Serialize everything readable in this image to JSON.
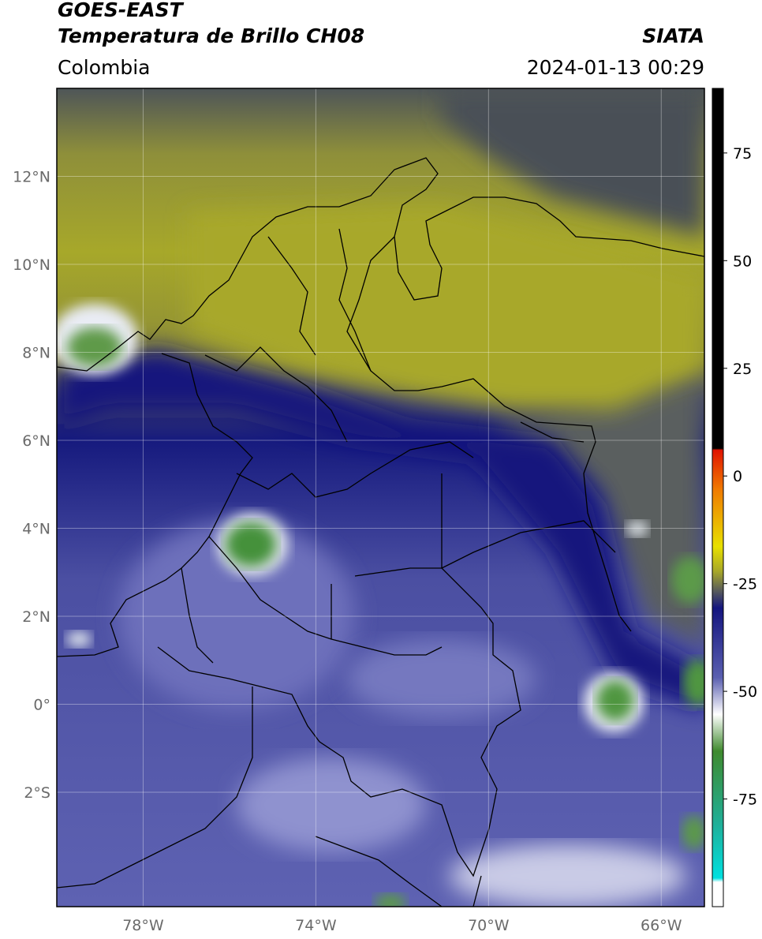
{
  "header": {
    "satellite": "GOES-EAST",
    "product": "Temperatura de Brillo CH08",
    "source": "SIATA",
    "region": "Colombia",
    "datetime": "2024-01-13 00:29"
  },
  "map": {
    "lat_labels": [
      "12°N",
      "10°N",
      "8°N",
      "6°N",
      "4°N",
      "2°N",
      "0°",
      "2°S"
    ],
    "lon_labels": [
      "78°W",
      "74°W",
      "70°W",
      "66°W"
    ],
    "lat_values": [
      12,
      10,
      8,
      6,
      4,
      2,
      0,
      -2
    ],
    "lon_values": [
      -78,
      -74,
      -70,
      -66
    ],
    "lat_range": [
      -4.6,
      14.0
    ],
    "lon_range": [
      -80.0,
      -65.0
    ],
    "grid": true
  },
  "colorbar": {
    "tick_labels": [
      "75",
      "50",
      "25",
      "0",
      "-25",
      "-50",
      "-75"
    ],
    "tick_values": [
      75,
      50,
      25,
      0,
      -25,
      -50,
      -75
    ],
    "range": [
      -100,
      90
    ],
    "colors": {
      "warm": "#000000",
      "red": "#e01400",
      "orange": "#f07a00",
      "yellow": "#e8e000",
      "olive": "#a8a828",
      "gray": "#55585c",
      "navy": "#14157f",
      "blue": "#5a5fb0",
      "white": "#ffffff",
      "green": "#3f8a2e",
      "teal": "#1fb09a",
      "cyan": "#00e0e0"
    }
  }
}
